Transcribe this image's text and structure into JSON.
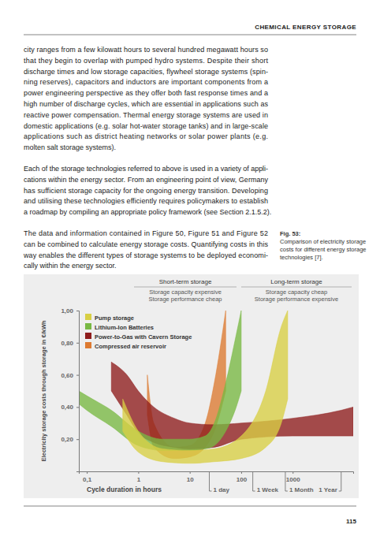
{
  "header": "CHEMICAL ENERGY STORAGE",
  "body": {
    "paragraphs": [
      [
        "city ranges from a few kilowatt hours to several hundred megawatt hours so",
        "that they begin to overlap with pumped hydro systems. Despite their short",
        "discharge times and low storage capacities, flywheel storage systems (spin-",
        "ning reserves), capacitors and inductors are important components from a",
        "power engineering perspective as they offer both fast response times and a",
        "high number of discharge cycles, which are essential in applications such as",
        "reactive power compensation. Thermal energy storage systems are used in",
        "domestic applications (e.g. solar hot-water storage tanks) and in large-scale",
        "applications such as district heating networks or solar power plants (e.g.",
        "molten salt storage systems)."
      ],
      [
        "Each of the storage technologies referred to above is used in a variety of appli-",
        "cations within the energy sector. From an engineering point of view, Germany",
        "has sufficient storage capacity for the ongoing energy transition. Developing",
        "and utilising these technologies efficiently requires policymakers to establish",
        "a roadmap by compiling an appropriate policy framework (see Section 2.1.5.2)."
      ],
      [
        "The data and information contained in Figure 50, Figure 51 and Figure 52",
        "can be combined to calculate energy storage costs. Quantifying costs in this",
        "way enables the different types of storage systems to be deployed economi-",
        "cally within the energy sector."
      ]
    ]
  },
  "caption": {
    "label": "Fig. 53:",
    "lines": [
      "Comparison of electricity storage",
      "costs for different energy storage",
      "technologies [7]."
    ]
  },
  "page_number": "115",
  "chart_data": {
    "type": "range_area",
    "xlabel": "Cycle duration in hours",
    "ylabel": "Electricity storage costs through storage in €/kWh",
    "log": "x",
    "legend": "upper left",
    "grid": false,
    "xlim": [
      0.07,
      15000
    ],
    "ylim": [
      0,
      1.0
    ],
    "xticks": [
      {
        "value": 0.1,
        "label": "0,1"
      },
      1,
      10,
      100,
      1000
    ],
    "yticks": [
      {
        "value": 0.2,
        "label": "0,20"
      },
      {
        "value": 0.4,
        "label": "0,40"
      },
      {
        "value": 0.6,
        "label": "0,60"
      },
      {
        "value": 0.8,
        "label": "0,80"
      },
      {
        "value": 1.0,
        "label": "1,00"
      }
    ],
    "x_markers": [
      {
        "value": 24,
        "label": "1 day"
      },
      {
        "value": 168,
        "label": "1 Week"
      },
      {
        "value": 720,
        "label": "1 Month"
      },
      {
        "value": 8760,
        "label": "1 Year"
      }
    ],
    "annotations": [
      {
        "text": "Short-term storage",
        "notes": [
          "Storage capacity expensive",
          "Storage performance cheap"
        ]
      },
      {
        "text": "Long-term storage",
        "notes": [
          "Storage capacity cheap",
          "Storage performance expensive"
        ]
      }
    ],
    "series": [
      {
        "name": "Pump storage",
        "color": "#d8cf44",
        "x": [
          0.5,
          1,
          3,
          10,
          30,
          100,
          300,
          600,
          800
        ],
        "lower": [
          0.25,
          0.12,
          0.06,
          0.05,
          0.06,
          0.08,
          0.15,
          0.3,
          0.45
        ],
        "upper": [
          0.45,
          0.25,
          0.14,
          0.13,
          0.14,
          0.22,
          0.5,
          0.9,
          1.0
        ]
      },
      {
        "name": "Lithium-Ion Batteries",
        "color": "#78b843",
        "x": [
          0.07,
          0.1,
          0.3,
          1,
          3,
          10,
          20,
          30,
          50,
          80,
          100
        ],
        "lower": [
          0.42,
          0.38,
          0.28,
          0.16,
          0.13,
          0.13,
          0.14,
          0.16,
          0.25,
          0.4,
          0.5
        ],
        "upper": [
          0.5,
          0.47,
          0.38,
          0.25,
          0.2,
          0.2,
          0.22,
          0.3,
          0.55,
          0.85,
          1.0
        ]
      },
      {
        "name": "Power-to-Gas with Cavern Storage",
        "color": "#8e1c1c",
        "x": [
          0.3,
          0.6,
          1,
          2,
          5,
          10,
          30,
          100,
          1000,
          8760,
          15000
        ],
        "lower": [
          0.5,
          0.35,
          0.24,
          0.18,
          0.15,
          0.14,
          0.15,
          0.2,
          0.22,
          0.22,
          0.22
        ],
        "upper": [
          0.68,
          0.6,
          0.5,
          0.4,
          0.33,
          0.3,
          0.29,
          0.3,
          0.33,
          0.38,
          0.4
        ]
      },
      {
        "name": "Compressed air reservoir",
        "color": "#dd7a31",
        "x": [
          1.5,
          2,
          5,
          10,
          20,
          30,
          50
        ],
        "lower": [
          0.35,
          0.15,
          0.08,
          0.09,
          0.15,
          0.25,
          0.5
        ],
        "upper": [
          0.6,
          0.3,
          0.15,
          0.16,
          0.3,
          0.55,
          1.0
        ]
      }
    ]
  }
}
